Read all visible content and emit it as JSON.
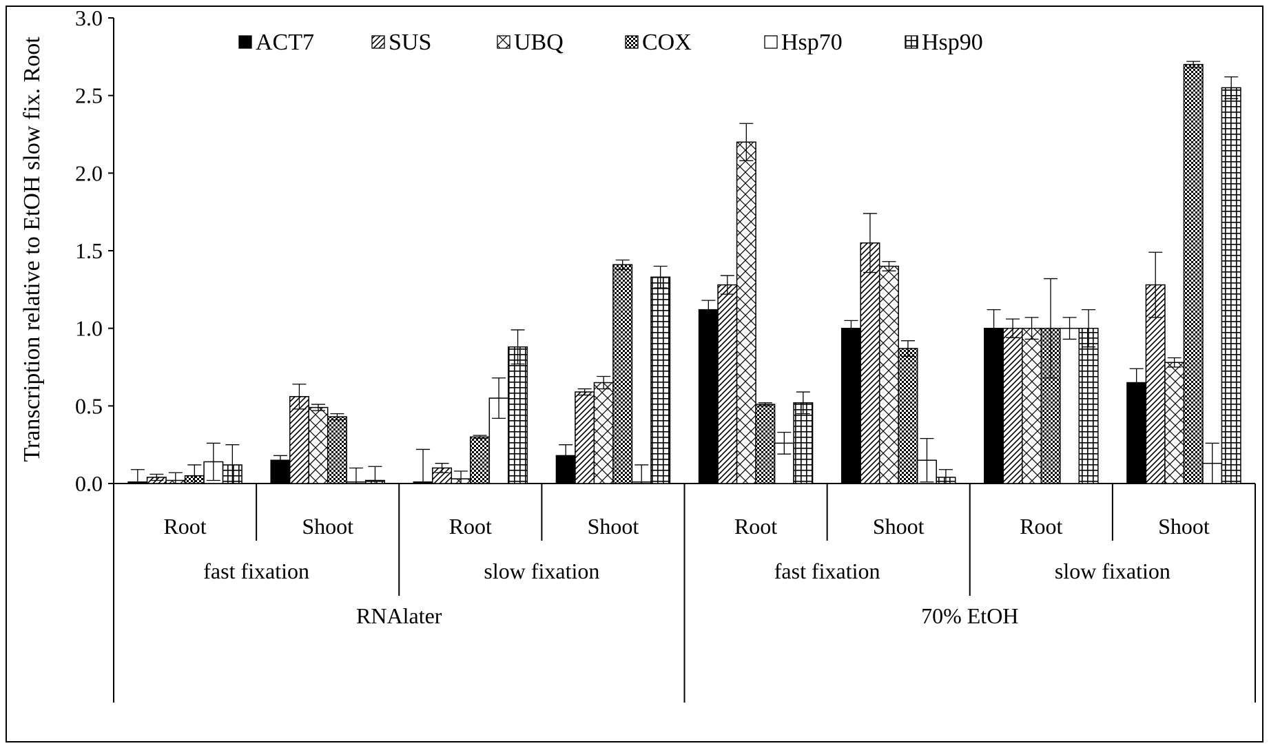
{
  "chart_data": {
    "type": "bar",
    "ylabel": "Transcription relative to EtOH slow fix. Root",
    "ylim": [
      0,
      3.0
    ],
    "yticks": [
      "0.0",
      "0.5",
      "1.0",
      "1.5",
      "2.0",
      "2.5",
      "3.0"
    ],
    "grid": false,
    "legend_position": "top",
    "tissues": [
      "Root",
      "Shoot",
      "Root",
      "Shoot",
      "Root",
      "Shoot",
      "Root",
      "Shoot"
    ],
    "fixations": [
      "fast fixation",
      "slow fixation",
      "fast fixation",
      "slow fixation"
    ],
    "reagents": [
      "RNAlater",
      "70% EtOH"
    ],
    "series": [
      {
        "name": "ACT7",
        "pattern": "solid",
        "values": [
          0.01,
          0.15,
          0.01,
          0.18,
          1.12,
          1.0,
          1.0,
          0.65
        ],
        "errors": [
          0.08,
          0.03,
          0.21,
          0.07,
          0.06,
          0.05,
          0.12,
          0.09
        ]
      },
      {
        "name": "SUS",
        "pattern": "diagonal",
        "values": [
          0.04,
          0.56,
          0.1,
          0.59,
          1.28,
          1.55,
          1.0,
          1.28
        ],
        "errors": [
          0.02,
          0.08,
          0.03,
          0.02,
          0.06,
          0.19,
          0.06,
          0.21
        ]
      },
      {
        "name": "UBQ",
        "pattern": "crosshatch",
        "values": [
          0.02,
          0.49,
          0.03,
          0.65,
          2.2,
          1.4,
          1.0,
          0.78
        ],
        "errors": [
          0.05,
          0.02,
          0.05,
          0.04,
          0.12,
          0.03,
          0.07,
          0.03
        ]
      },
      {
        "name": "COX",
        "pattern": "dense-check",
        "values": [
          0.05,
          0.43,
          0.3,
          1.41,
          0.51,
          0.87,
          1.0,
          2.7
        ],
        "errors": [
          0.07,
          0.02,
          0.01,
          0.03,
          0.01,
          0.05,
          0.32,
          0.02
        ]
      },
      {
        "name": "Hsp70",
        "pattern": "open",
        "values": [
          0.14,
          0.01,
          0.55,
          0.01,
          0.26,
          0.15,
          1.0,
          0.13
        ],
        "errors": [
          0.12,
          0.09,
          0.13,
          0.11,
          0.07,
          0.14,
          0.07,
          0.13
        ]
      },
      {
        "name": "Hsp90",
        "pattern": "grid",
        "values": [
          0.12,
          0.02,
          0.88,
          1.33,
          0.52,
          0.04,
          1.0,
          2.55
        ],
        "errors": [
          0.13,
          0.09,
          0.11,
          0.07,
          0.07,
          0.05,
          0.12,
          0.07
        ]
      }
    ]
  }
}
